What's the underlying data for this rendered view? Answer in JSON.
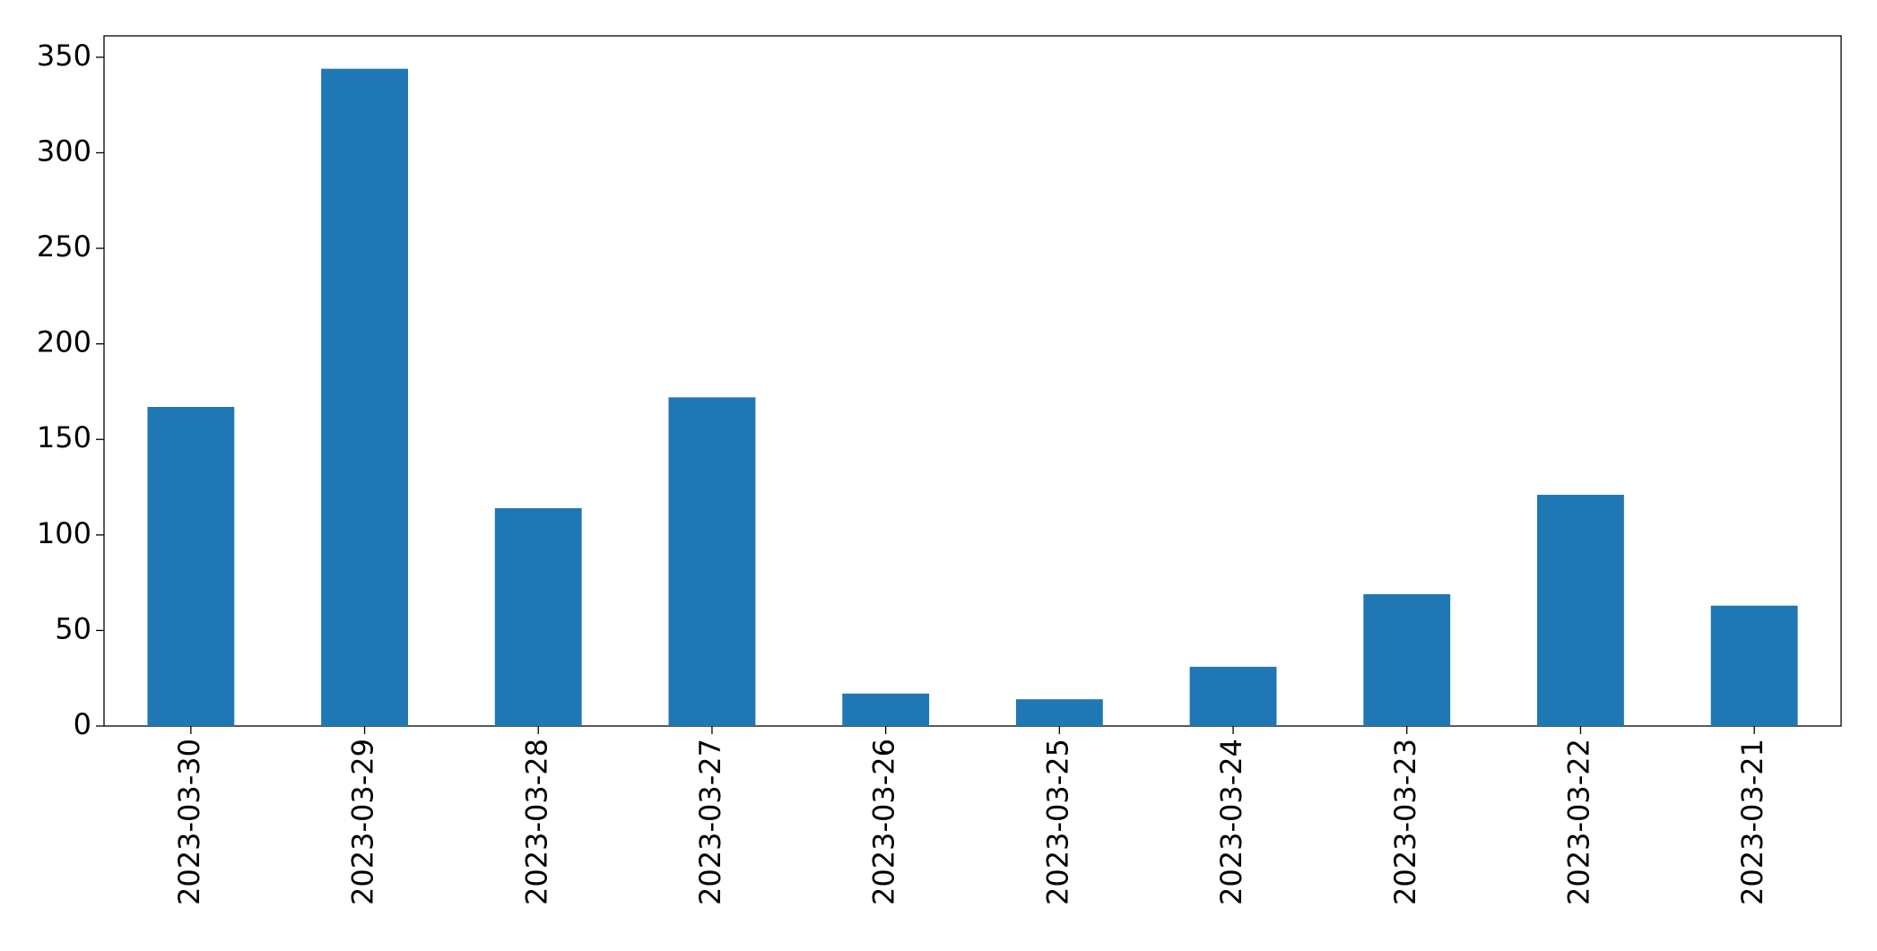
{
  "chart_data": {
    "type": "bar",
    "categories": [
      "2023-03-30",
      "2023-03-29",
      "2023-03-28",
      "2023-03-27",
      "2023-03-26",
      "2023-03-25",
      "2023-03-24",
      "2023-03-23",
      "2023-03-22",
      "2023-03-21"
    ],
    "values": [
      167,
      344,
      114,
      172,
      17,
      14,
      31,
      69,
      121,
      63
    ],
    "color": "#1f77b4",
    "ylim": [
      0,
      361.2
    ],
    "yticks": [
      0,
      50,
      100,
      150,
      200,
      250,
      300,
      350
    ],
    "grid": false
  }
}
